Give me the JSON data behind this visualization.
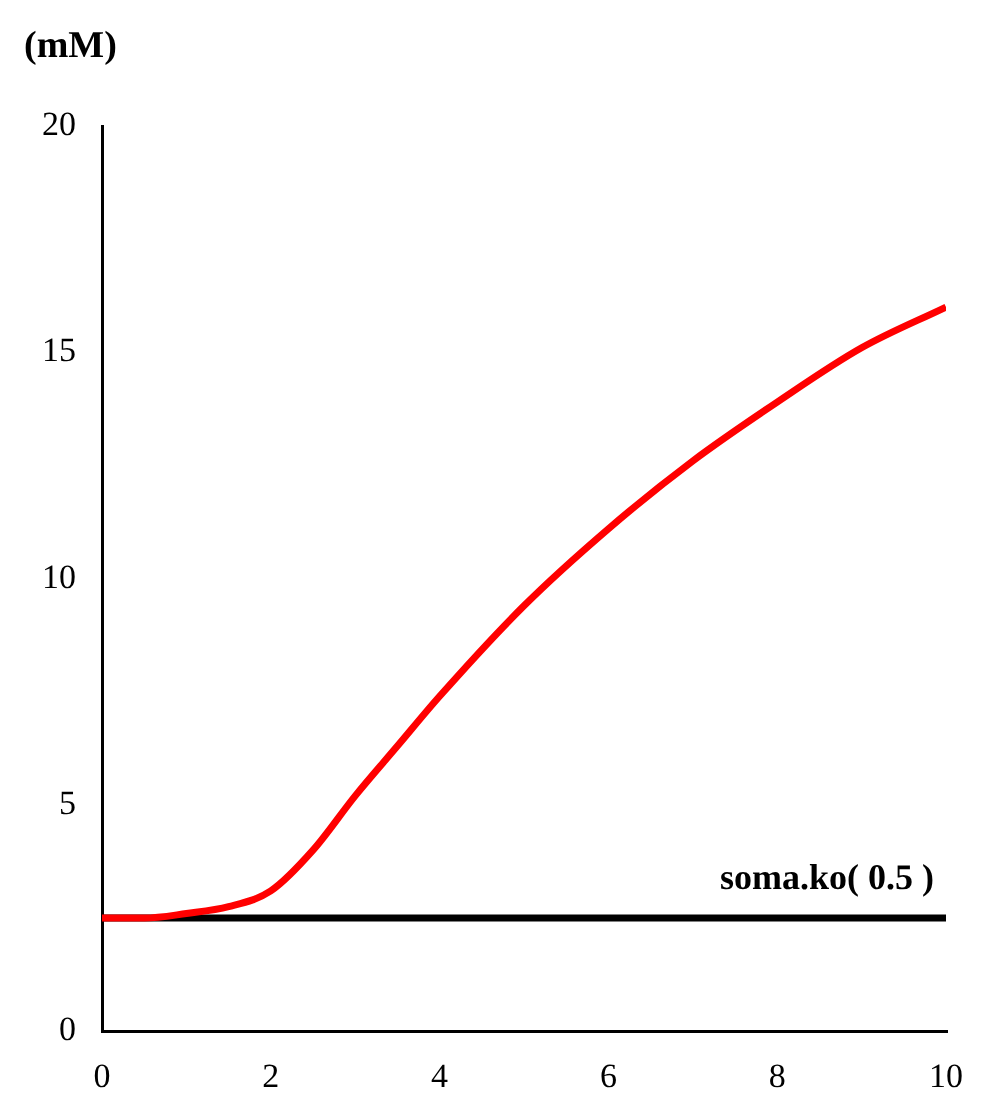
{
  "chart_data": {
    "type": "line",
    "ylabel": "(mM)",
    "x": [
      0,
      0.5,
      1,
      1.5,
      2,
      2.5,
      3,
      3.5,
      4,
      5,
      6,
      7,
      8,
      9,
      10
    ],
    "series": [
      {
        "color": "#ff0000",
        "values": [
          2.5,
          2.5,
          2.6,
          2.75,
          3.1,
          4.0,
          5.2,
          6.3,
          7.4,
          9.4,
          11.1,
          12.6,
          13.9,
          15.1,
          16.0
        ]
      },
      {
        "name": "soma.ko( 0.5 )",
        "color": "#000000",
        "values": [
          2.5,
          2.5,
          2.5,
          2.5,
          2.5,
          2.5,
          2.5,
          2.5,
          2.5,
          2.5,
          2.5,
          2.5,
          2.5,
          2.5,
          2.5
        ]
      }
    ],
    "xlim": [
      0,
      10
    ],
    "xticks": [
      0,
      2,
      4,
      6,
      8,
      10
    ],
    "ylim": [
      0,
      20
    ],
    "yticks": [
      0,
      5,
      10,
      15,
      20
    ],
    "grid": false,
    "legend": false,
    "marker": "none",
    "line_style": "solid"
  }
}
